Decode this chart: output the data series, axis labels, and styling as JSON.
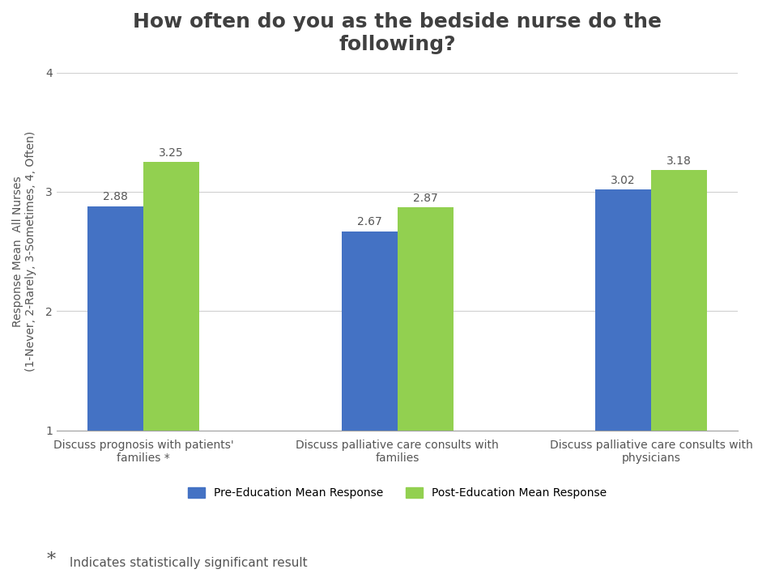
{
  "title": "How often do you as the bedside nurse do the\nfollowing?",
  "ylabel": "Response Mean  All Nurses\n(1-Never, 2-Rarely, 3-Sometimes, 4, Often)",
  "categories": [
    "Discuss prognosis with patients'\nfamilies *",
    "Discuss palliative care consults with\nfamilies",
    "Discuss palliative care consults with\nphysicians"
  ],
  "pre_values": [
    2.88,
    2.67,
    3.02
  ],
  "post_values": [
    3.25,
    2.87,
    3.18
  ],
  "pre_color": "#4472C4",
  "post_color": "#92D050",
  "ylim_min": 1,
  "ylim_max": 4,
  "yticks": [
    1,
    2,
    3,
    4
  ],
  "legend_labels": [
    "Pre-Education Mean Response",
    "Post-Education Mean Response"
  ],
  "footnote_star": "*",
  "footnote_text": " Indicates statistically significant result",
  "title_fontsize": 18,
  "axis_label_fontsize": 10,
  "tick_fontsize": 10,
  "bar_label_fontsize": 10,
  "legend_fontsize": 10,
  "footnote_fontsize": 11,
  "footnote_star_fontsize": 16,
  "bar_width": 0.22,
  "background_color": "#ffffff",
  "grid_color": "#d0d0d0",
  "spine_color": "#a0a0a0",
  "text_color": "#555555"
}
